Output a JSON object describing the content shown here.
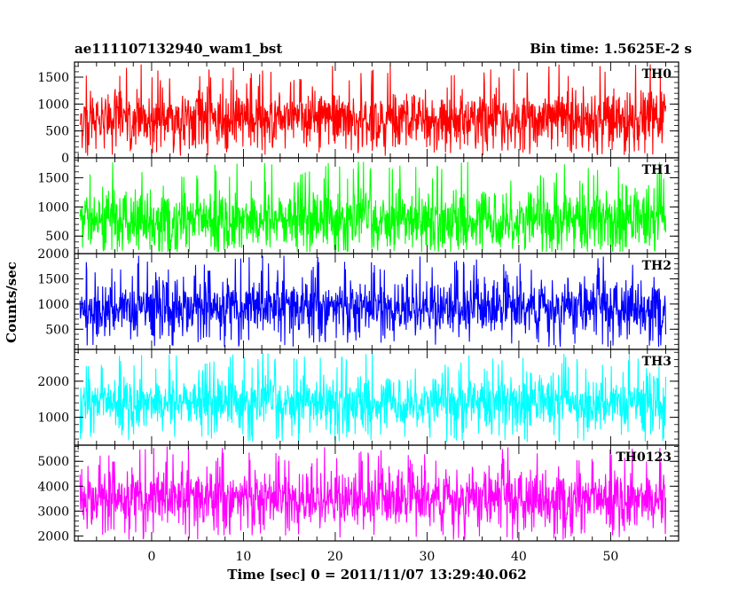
{
  "chart_data": {
    "type": "line",
    "title_left": "ae111107132940_wam1_bst",
    "title_right": "Bin time: 1.5625E-2 s",
    "xlabel": "Time [sec] 0 = 2011/11/07 13:29:40.062",
    "ylabel": "Counts/sec",
    "xlim": [
      -8.4,
      57.4
    ],
    "x_ticks": [
      0,
      10,
      20,
      30,
      40,
      50
    ],
    "data_x_range": [
      -7.8,
      56.0
    ],
    "panels": [
      {
        "name": "TH0",
        "color": "#ff0000",
        "ylim": [
          0,
          1780
        ],
        "y_ticks": [
          0,
          500,
          1000,
          1500
        ],
        "mean": 720,
        "noise": 260,
        "spike_max": 1750,
        "floor": 40
      },
      {
        "name": "TH1",
        "color": "#00ff00",
        "ylim": [
          200,
          1840
        ],
        "y_ticks": [
          500,
          1000,
          1500
        ],
        "mean": 780,
        "noise": 260,
        "spike_max": 1780,
        "floor": 230
      },
      {
        "name": "TH2",
        "color": "#0000ff",
        "ylim": [
          100,
          2000
        ],
        "y_ticks": [
          500,
          1000,
          1500,
          2000
        ],
        "mean": 930,
        "noise": 270,
        "spike_max": 1960,
        "floor": 150
      },
      {
        "name": "TH3",
        "color": "#00ffff",
        "ylim": [
          230,
          2880
        ],
        "y_ticks": [
          1000,
          2000
        ],
        "mean": 1420,
        "noise": 360,
        "spike_max": 2780,
        "floor": 300
      },
      {
        "name": "TH0123",
        "color": "#ff00ff",
        "ylim": [
          1800,
          5650
        ],
        "y_ticks": [
          2000,
          3000,
          4000,
          5000
        ],
        "mean": 3500,
        "noise": 580,
        "spike_max": 5600,
        "floor": 1850
      }
    ]
  }
}
